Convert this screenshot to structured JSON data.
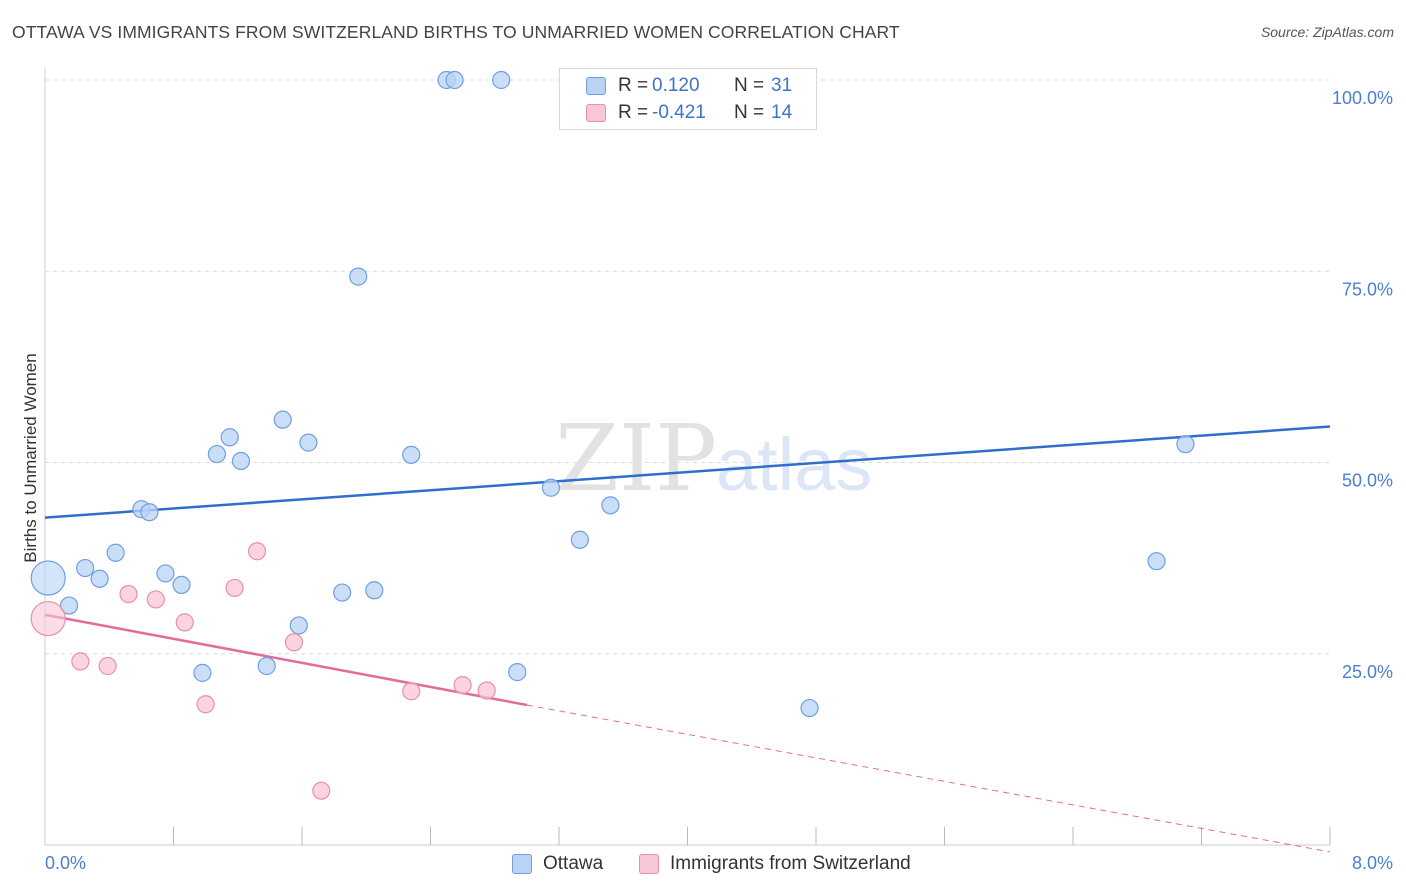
{
  "header": {
    "title": "OTTAWA VS IMMIGRANTS FROM SWITZERLAND BIRTHS TO UNMARRIED WOMEN CORRELATION CHART",
    "source": "Source: ZipAtlas.com"
  },
  "watermark": {
    "zip": "ZIP",
    "atlas": "atlas"
  },
  "legend": {
    "rows": [
      {
        "r_label": "R =",
        "r_value": "0.120",
        "n_label": "N =",
        "n_value": "31"
      },
      {
        "r_label": "R =",
        "r_value": "-0.421",
        "n_label": "N =",
        "n_value": "14"
      }
    ]
  },
  "bottom_legend": {
    "ottawa": "Ottawa",
    "swiss": "Immigrants from Switzerland"
  },
  "colors": {
    "ottawa_fill": "#b9d3f5",
    "ottawa_stroke": "#6f9fe0",
    "ottawa_line": "#2f6fcb",
    "swiss_fill": "#f9c6d5",
    "swiss_stroke": "#e890ab",
    "swiss_line": "#e46b94",
    "tick_text": "#4a7fd0",
    "grid": "#dcdcdc"
  },
  "chart_data": {
    "type": "scatter",
    "title": "OTTAWA VS IMMIGRANTS FROM SWITZERLAND BIRTHS TO UNMARRIED WOMEN CORRELATION CHART",
    "xlabel": "",
    "ylabel": "Births to Unmarried Women",
    "xlim": [
      0,
      8
    ],
    "ylim": [
      0,
      100
    ],
    "x_tick_labels": [
      "0.0%",
      "8.0%"
    ],
    "y_ticks": [
      25,
      50,
      75,
      100
    ],
    "y_tick_labels": [
      "25.0%",
      "50.0%",
      "75.0%",
      "100.0%"
    ],
    "grid": true,
    "legend_placement": "top-center",
    "series": [
      {
        "name": "Ottawa",
        "r": 0.12,
        "n": 31,
        "trend": {
          "x": [
            0,
            8
          ],
          "y": [
            42.8,
            54.7
          ],
          "dashed_to": null
        },
        "points": [
          {
            "x": 0.02,
            "y": 34.9,
            "big": true
          },
          {
            "x": 0.15,
            "y": 31.3
          },
          {
            "x": 0.25,
            "y": 36.2
          },
          {
            "x": 0.34,
            "y": 34.8
          },
          {
            "x": 0.44,
            "y": 38.2
          },
          {
            "x": 0.6,
            "y": 43.9
          },
          {
            "x": 0.65,
            "y": 43.5
          },
          {
            "x": 0.75,
            "y": 35.5
          },
          {
            "x": 0.85,
            "y": 34.0
          },
          {
            "x": 0.98,
            "y": 22.5
          },
          {
            "x": 1.07,
            "y": 51.1
          },
          {
            "x": 1.15,
            "y": 53.3
          },
          {
            "x": 1.22,
            "y": 50.2
          },
          {
            "x": 1.38,
            "y": 23.4
          },
          {
            "x": 1.48,
            "y": 55.6
          },
          {
            "x": 1.58,
            "y": 28.7
          },
          {
            "x": 1.64,
            "y": 52.6
          },
          {
            "x": 1.85,
            "y": 33.0
          },
          {
            "x": 1.95,
            "y": 74.3
          },
          {
            "x": 2.05,
            "y": 33.3
          },
          {
            "x": 2.28,
            "y": 51.0
          },
          {
            "x": 2.5,
            "y": 100.0
          },
          {
            "x": 2.55,
            "y": 100.0
          },
          {
            "x": 2.84,
            "y": 100.0
          },
          {
            "x": 2.94,
            "y": 22.6
          },
          {
            "x": 3.15,
            "y": 46.7
          },
          {
            "x": 3.33,
            "y": 39.9
          },
          {
            "x": 3.52,
            "y": 44.4
          },
          {
            "x": 4.76,
            "y": 17.9
          },
          {
            "x": 6.92,
            "y": 37.1
          },
          {
            "x": 7.1,
            "y": 52.4
          }
        ]
      },
      {
        "name": "Immigrants from Switzerland",
        "r": -0.421,
        "n": 14,
        "trend": {
          "x": [
            0,
            3.0
          ],
          "y": [
            30.1,
            18.3
          ],
          "dashed_to": {
            "x": 8,
            "y": -0.9
          }
        },
        "points": [
          {
            "x": 0.02,
            "y": 29.6,
            "big": true
          },
          {
            "x": 0.22,
            "y": 24.0
          },
          {
            "x": 0.39,
            "y": 23.4
          },
          {
            "x": 0.52,
            "y": 32.8
          },
          {
            "x": 0.69,
            "y": 32.1
          },
          {
            "x": 0.87,
            "y": 29.1
          },
          {
            "x": 1.0,
            "y": 18.4
          },
          {
            "x": 1.18,
            "y": 33.6
          },
          {
            "x": 1.32,
            "y": 38.4
          },
          {
            "x": 1.55,
            "y": 26.5
          },
          {
            "x": 1.72,
            "y": 7.1
          },
          {
            "x": 2.28,
            "y": 20.1
          },
          {
            "x": 2.6,
            "y": 20.9
          },
          {
            "x": 2.75,
            "y": 20.2
          }
        ]
      }
    ]
  }
}
